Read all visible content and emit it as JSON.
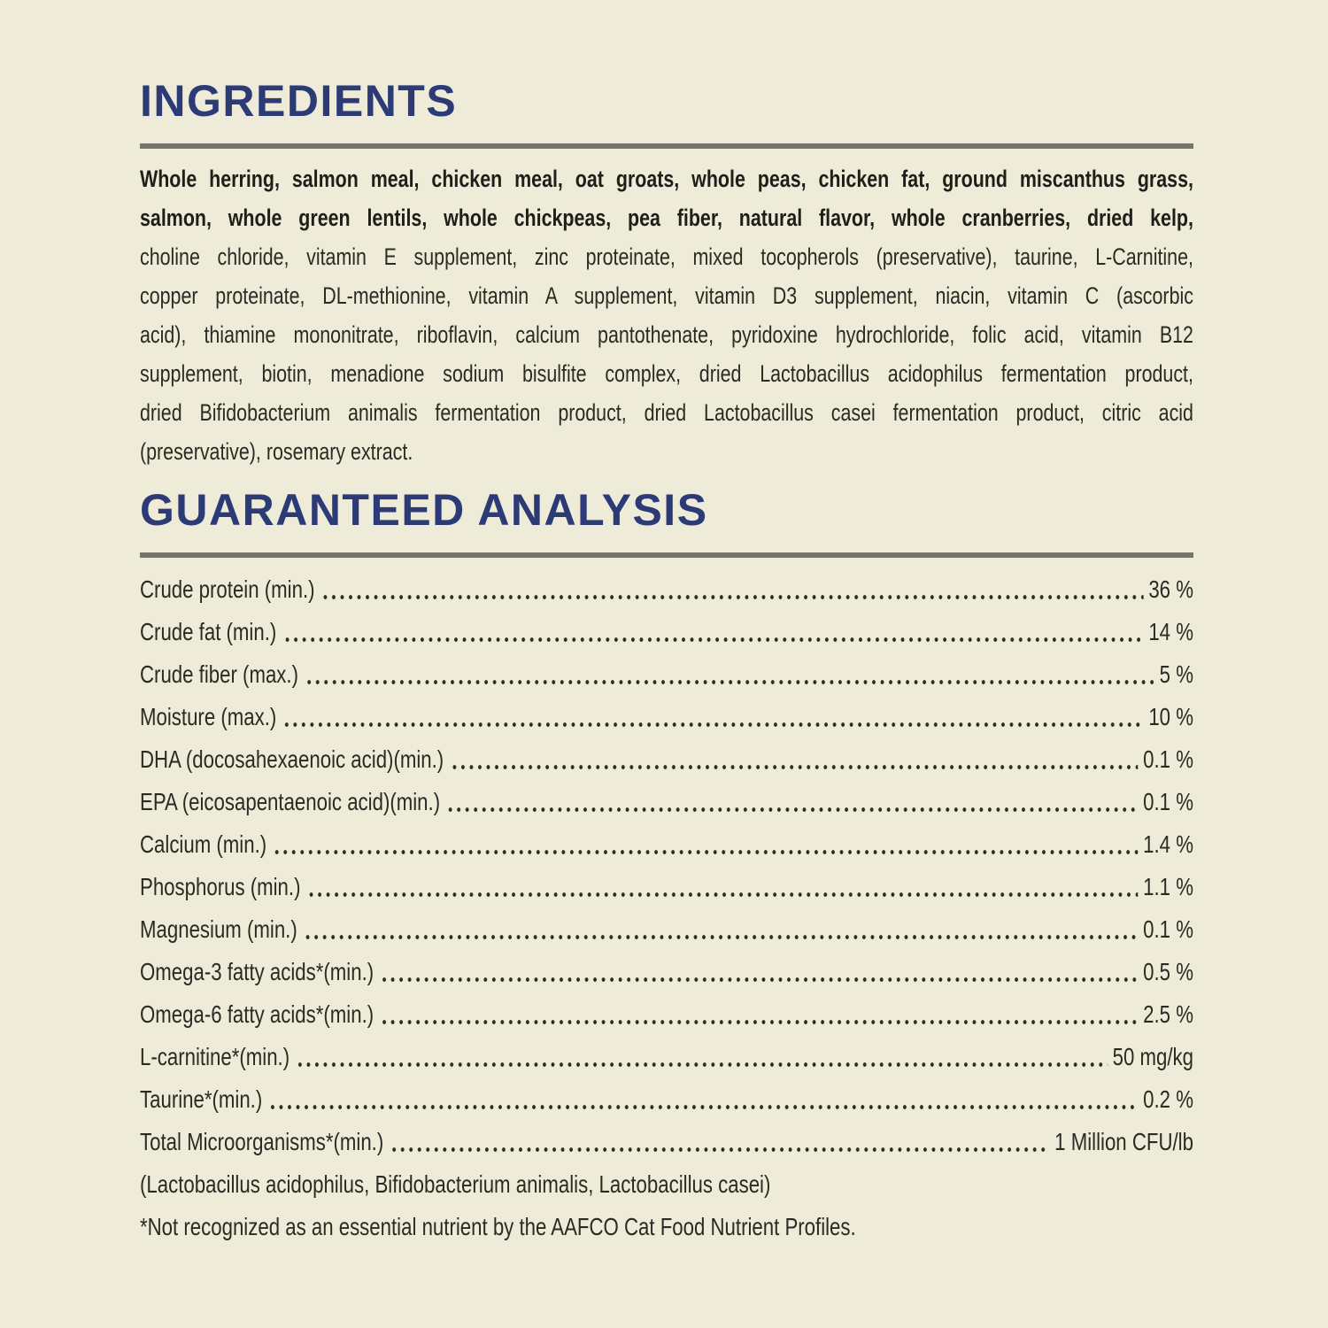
{
  "colors": {
    "background": "#efebd9",
    "heading": "#2c3b76",
    "rule": "#75746e",
    "body_text": "#2b2b23"
  },
  "ingredients": {
    "title": "INGREDIENTS",
    "lines": [
      {
        "text": "Whole herring, salmon meal, chicken meal, oat groats, whole peas, chicken fat, ground miscanthus grass,",
        "bold": true,
        "last": false
      },
      {
        "text": "salmon, whole green lentils, whole chickpeas, pea fiber, natural flavor, whole cranberries, dried kelp,",
        "bold": true,
        "last": false
      },
      {
        "text": "choline chloride, vitamin E supplement, zinc proteinate, mixed tocopherols (preservative), taurine, L-Carnitine,",
        "bold": false,
        "last": false
      },
      {
        "text": "copper proteinate, DL-methionine, vitamin A supplement, vitamin D3 supplement, niacin, vitamin C (ascorbic",
        "bold": false,
        "last": false
      },
      {
        "text": "acid), thiamine mononitrate, riboflavin, calcium pantothenate, pyridoxine hydrochloride, folic acid, vitamin B12",
        "bold": false,
        "last": false
      },
      {
        "text": "supplement, biotin, menadione sodium bisulfite complex, dried Lactobacillus acidophilus fermentation product,",
        "bold": false,
        "last": false
      },
      {
        "text": "dried Bifidobacterium animalis fermentation product, dried Lactobacillus casei fermentation product, citric acid",
        "bold": false,
        "last": false
      },
      {
        "text": "(preservative), rosemary extract.",
        "bold": false,
        "last": true
      }
    ]
  },
  "guaranteed_analysis": {
    "title": "GUARANTEED ANALYSIS",
    "rows": [
      {
        "label": "Crude protein (min.)",
        "value": "36 %"
      },
      {
        "label": "Crude fat (min.)",
        "value": "14 %"
      },
      {
        "label": "Crude fiber (max.)",
        "value": "5 %"
      },
      {
        "label": "Moisture (max.)",
        "value": "10 %"
      },
      {
        "label": "DHA (docosahexaenoic acid)(min.)",
        "value": "0.1 %"
      },
      {
        "label": "EPA (eicosapentaenoic acid)(min.)",
        "value": "0.1 %"
      },
      {
        "label": "Calcium (min.)",
        "value": "1.4 %"
      },
      {
        "label": "Phosphorus (min.)",
        "value": "1.1 %"
      },
      {
        "label": "Magnesium (min.)",
        "value": "0.1 %"
      },
      {
        "label": "Omega-3 fatty acids*(min.)",
        "value": "0.5 %"
      },
      {
        "label": "Omega-6 fatty acids*(min.)",
        "value": "2.5 %"
      },
      {
        "label": "L-carnitine*(min.)",
        "value": "50 mg/kg"
      },
      {
        "label": "Taurine*(min.)",
        "value": "0.2 %"
      },
      {
        "label": "Total Microorganisms*(min.)",
        "value": "1 Million CFU/lb"
      }
    ],
    "footnotes": [
      "(Lactobacillus acidophilus, Bifidobacterium animalis, Lactobacillus casei)",
      "*Not recognized as an essential nutrient by the AAFCO Cat Food Nutrient Profiles."
    ]
  }
}
